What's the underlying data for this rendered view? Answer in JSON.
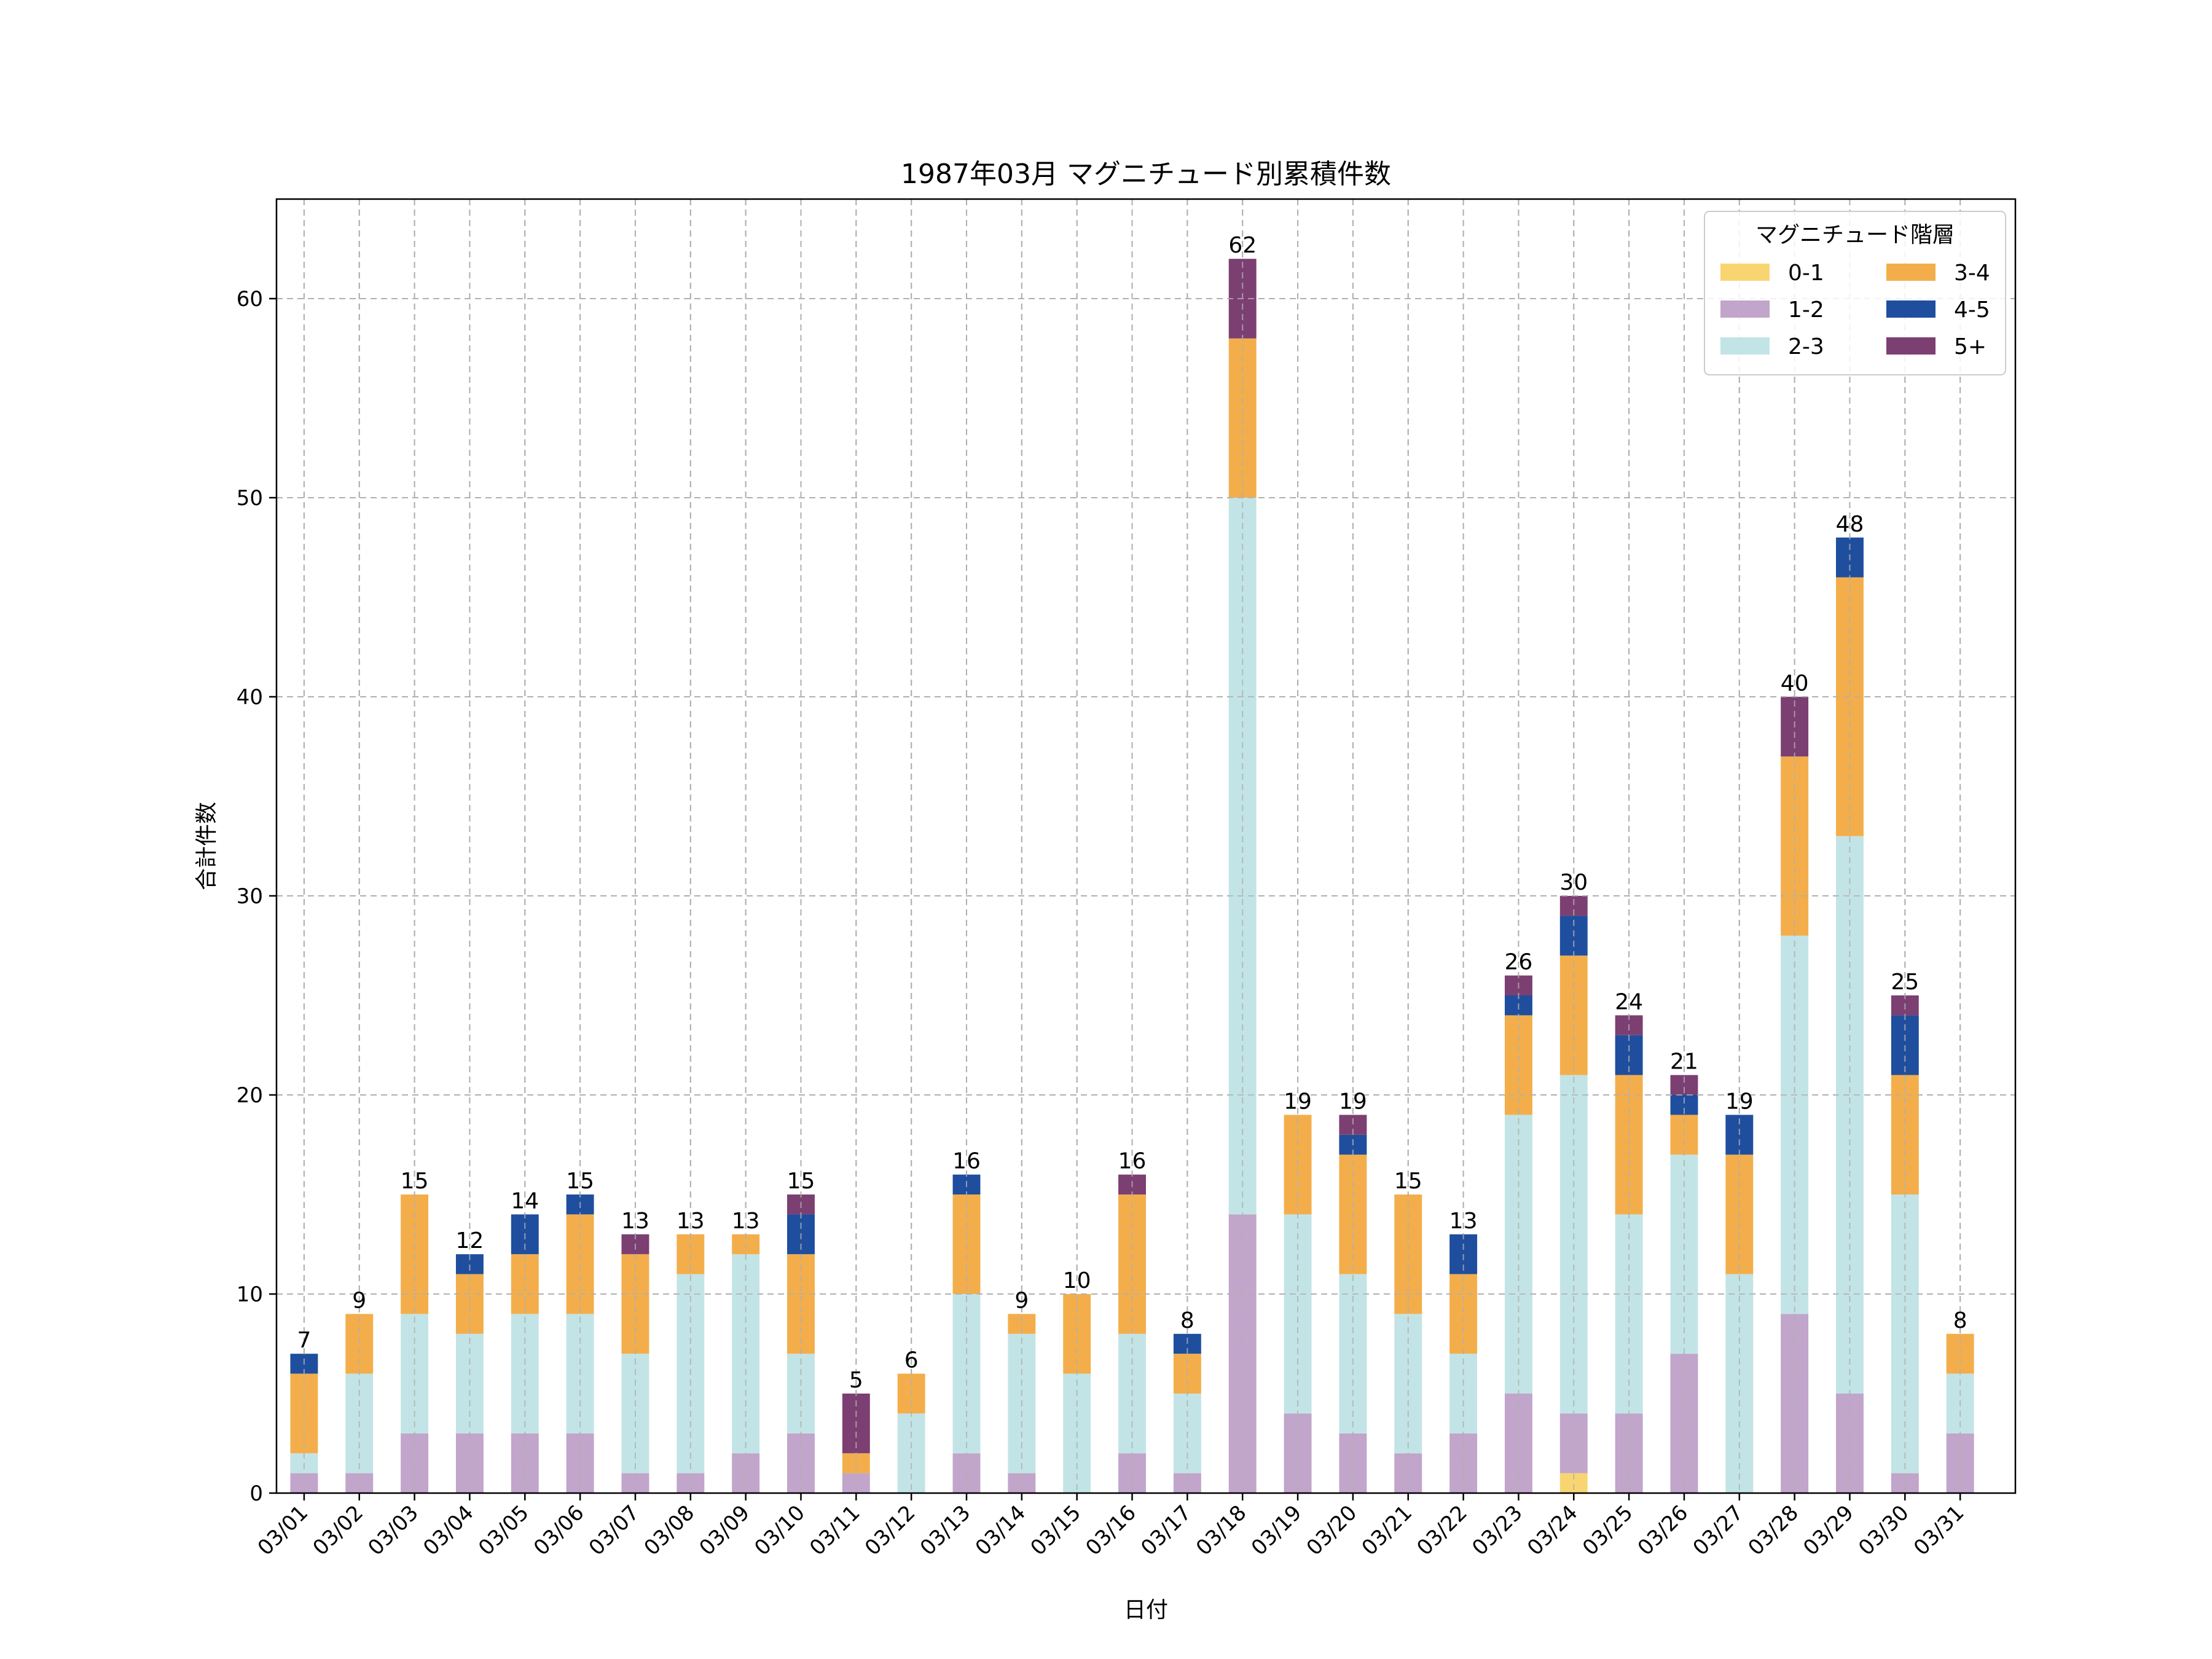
{
  "chart_data": {
    "type": "bar",
    "stacked": true,
    "title": "1987年03月 マグニチュード別累積件数",
    "xlabel": "日付",
    "ylabel": "合計件数",
    "ylim": [
      0,
      65
    ],
    "yticks": [
      0,
      10,
      20,
      30,
      40,
      50,
      60
    ],
    "grid": true,
    "categories": [
      "03/01",
      "03/02",
      "03/03",
      "03/04",
      "03/05",
      "03/06",
      "03/07",
      "03/08",
      "03/09",
      "03/10",
      "03/11",
      "03/12",
      "03/13",
      "03/14",
      "03/15",
      "03/16",
      "03/17",
      "03/18",
      "03/19",
      "03/20",
      "03/21",
      "03/22",
      "03/23",
      "03/24",
      "03/25",
      "03/26",
      "03/27",
      "03/28",
      "03/29",
      "03/30",
      "03/31"
    ],
    "legend": {
      "title": "マグニチュード階層",
      "position": "top-right"
    },
    "series": [
      {
        "name": "0-1",
        "color": "#F9D572",
        "values": [
          0,
          0,
          0,
          0,
          0,
          0,
          0,
          0,
          0,
          0,
          0,
          0,
          0,
          0,
          0,
          0,
          0,
          0,
          0,
          0,
          0,
          0,
          0,
          1,
          0,
          0,
          0,
          0,
          0,
          0,
          0
        ]
      },
      {
        "name": "1-2",
        "color": "#C1A5CA",
        "values": [
          1,
          1,
          3,
          3,
          3,
          3,
          1,
          1,
          2,
          3,
          1,
          0,
          2,
          1,
          0,
          2,
          1,
          14,
          4,
          3,
          2,
          3,
          5,
          3,
          4,
          7,
          0,
          9,
          5,
          1,
          3
        ]
      },
      {
        "name": "2-3",
        "color": "#C3E4E6",
        "values": [
          1,
          5,
          6,
          5,
          6,
          6,
          6,
          10,
          10,
          4,
          0,
          4,
          8,
          7,
          6,
          6,
          4,
          36,
          10,
          8,
          7,
          4,
          14,
          17,
          10,
          10,
          11,
          19,
          28,
          14,
          3
        ]
      },
      {
        "name": "3-4",
        "color": "#F3AE4B",
        "values": [
          4,
          3,
          6,
          3,
          3,
          5,
          5,
          2,
          1,
          5,
          1,
          2,
          5,
          1,
          4,
          7,
          2,
          8,
          5,
          6,
          6,
          4,
          5,
          6,
          7,
          2,
          6,
          9,
          13,
          6,
          2
        ]
      },
      {
        "name": "4-5",
        "color": "#1F4E9E",
        "values": [
          1,
          0,
          0,
          1,
          2,
          1,
          0,
          0,
          0,
          2,
          0,
          0,
          1,
          0,
          0,
          0,
          1,
          0,
          0,
          1,
          0,
          2,
          1,
          2,
          2,
          1,
          2,
          0,
          2,
          3,
          0
        ]
      },
      {
        "name": "5+",
        "color": "#7C3F72",
        "values": [
          0,
          0,
          0,
          0,
          0,
          0,
          1,
          0,
          0,
          1,
          3,
          0,
          0,
          0,
          0,
          1,
          0,
          4,
          0,
          1,
          0,
          0,
          1,
          1,
          1,
          1,
          0,
          3,
          0,
          1,
          0
        ]
      }
    ],
    "totals": [
      7,
      9,
      15,
      12,
      14,
      15,
      13,
      13,
      13,
      15,
      5,
      6,
      16,
      9,
      10,
      16,
      8,
      62,
      19,
      19,
      15,
      13,
      26,
      30,
      24,
      21,
      19,
      40,
      48,
      25,
      8
    ]
  }
}
